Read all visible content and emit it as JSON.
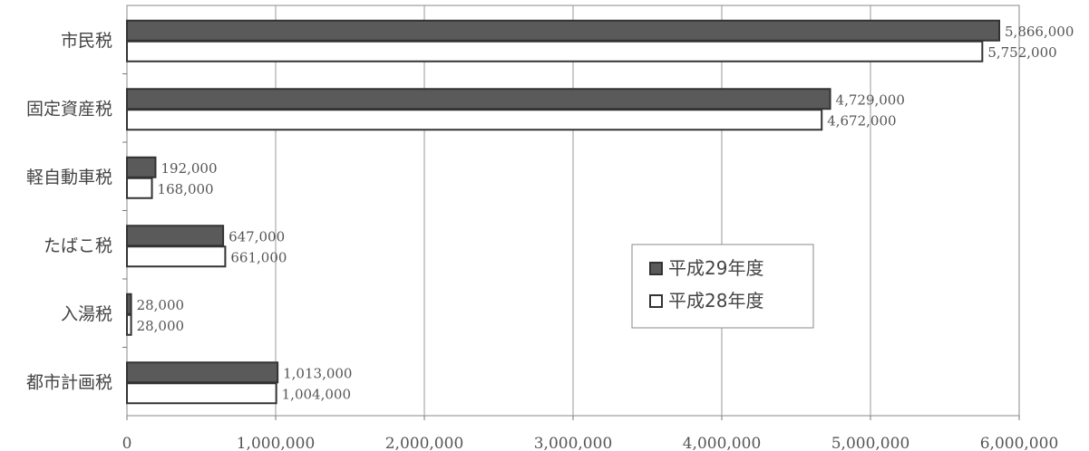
{
  "chart_data": {
    "type": "bar",
    "orientation": "horizontal",
    "categories": [
      "市民税",
      "固定資産税",
      "軽自動車税",
      "たばこ税",
      "入湯税",
      "都市計画税"
    ],
    "series": [
      {
        "name": "平成29年度",
        "color": "#5a5a5a",
        "values": [
          5866000,
          4729000,
          192000,
          647000,
          28000,
          1013000
        ],
        "labels": [
          "5,866,000",
          "4,729,000",
          "192,000",
          "647,000",
          "28,000",
          "1,013,000"
        ]
      },
      {
        "name": "平成28年度",
        "color": "#ffffff",
        "values": [
          5752000,
          4672000,
          168000,
          661000,
          28000,
          1004000
        ],
        "labels": [
          "5,752,000",
          "4,672,000",
          "168,000",
          "661,000",
          "28,000",
          "1,004,000"
        ]
      }
    ],
    "xlim": [
      0,
      6000000
    ],
    "xticks": [
      0,
      1000000,
      2000000,
      3000000,
      4000000,
      5000000,
      6000000
    ],
    "xtick_labels": [
      "0",
      "1,000,000",
      "2,000,000",
      "3,000,000",
      "4,000,000",
      "5,000,000",
      "6,000,000"
    ],
    "grid": "vertical",
    "legend": "center-right"
  }
}
